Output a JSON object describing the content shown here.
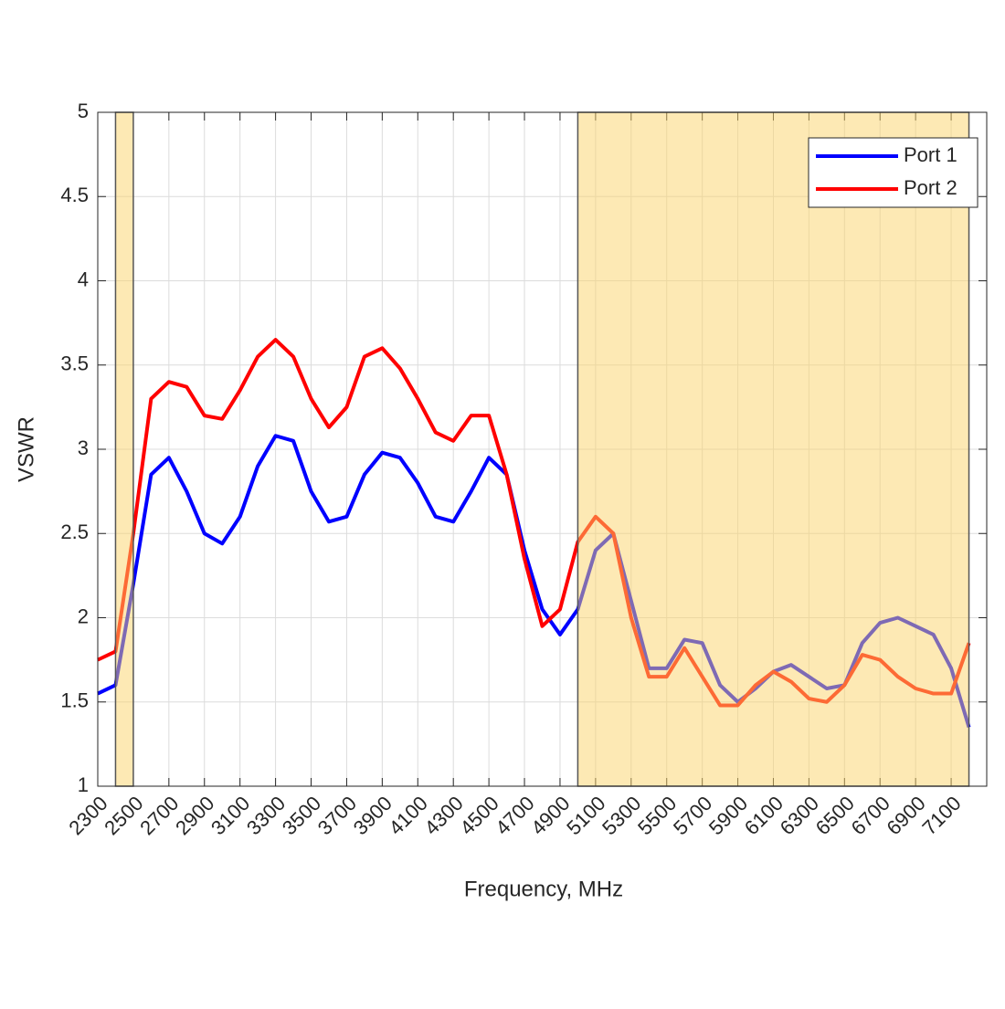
{
  "chart_data": {
    "type": "line",
    "xlabel": "Frequency, MHz",
    "ylabel": "VSWR",
    "x": [
      2300,
      2400,
      2500,
      2600,
      2700,
      2800,
      2900,
      3000,
      3100,
      3200,
      3300,
      3400,
      3500,
      3600,
      3700,
      3800,
      3900,
      4000,
      4100,
      4200,
      4300,
      4400,
      4500,
      4600,
      4700,
      4800,
      4900,
      5000,
      5100,
      5200,
      5300,
      5400,
      5500,
      5600,
      5700,
      5800,
      5900,
      6000,
      6100,
      6200,
      6300,
      6400,
      6500,
      6600,
      6700,
      6800,
      6900,
      7000,
      7100,
      7200
    ],
    "series": [
      {
        "name": "Port 1",
        "color": "#0000ff",
        "values": [
          1.55,
          1.6,
          2.2,
          2.85,
          2.95,
          2.75,
          2.5,
          2.44,
          2.6,
          2.9,
          3.08,
          3.05,
          2.75,
          2.57,
          2.6,
          2.85,
          2.98,
          2.95,
          2.8,
          2.6,
          2.57,
          2.75,
          2.95,
          2.85,
          2.4,
          2.05,
          1.9,
          2.05,
          2.4,
          2.5,
          2.1,
          1.7,
          1.7,
          1.87,
          1.85,
          1.6,
          1.5,
          1.58,
          1.68,
          1.72,
          1.65,
          1.58,
          1.6,
          1.85,
          1.97,
          2.0,
          1.95,
          1.9,
          1.7,
          1.35
        ]
      },
      {
        "name": "Port 2",
        "color": "#ff0000",
        "values": [
          1.75,
          1.8,
          2.5,
          3.3,
          3.4,
          3.37,
          3.2,
          3.18,
          3.35,
          3.55,
          3.65,
          3.55,
          3.3,
          3.13,
          3.25,
          3.55,
          3.6,
          3.48,
          3.3,
          3.1,
          3.05,
          3.2,
          3.2,
          2.85,
          2.35,
          1.95,
          2.05,
          2.45,
          2.6,
          2.5,
          2.0,
          1.65,
          1.65,
          1.82,
          1.65,
          1.48,
          1.48,
          1.6,
          1.68,
          1.62,
          1.52,
          1.5,
          1.6,
          1.78,
          1.75,
          1.65,
          1.58,
          1.55,
          1.55,
          1.85
        ]
      }
    ],
    "shaded_ranges": [
      [
        2400,
        2500
      ],
      [
        5000,
        7200
      ]
    ],
    "shade_color": "#fbd36a",
    "xlim": [
      2300,
      7300
    ],
    "ylim": [
      1,
      5
    ],
    "xticks": [
      2300,
      2500,
      2700,
      2900,
      3100,
      3300,
      3500,
      3700,
      3900,
      4100,
      4300,
      4500,
      4700,
      4900,
      5100,
      5300,
      5500,
      5700,
      5900,
      6100,
      6300,
      6500,
      6700,
      6900,
      7100
    ],
    "yticks": [
      1,
      1.5,
      2,
      2.5,
      3,
      3.5,
      4,
      4.5,
      5
    ],
    "grid": true,
    "legend": "northeast"
  }
}
